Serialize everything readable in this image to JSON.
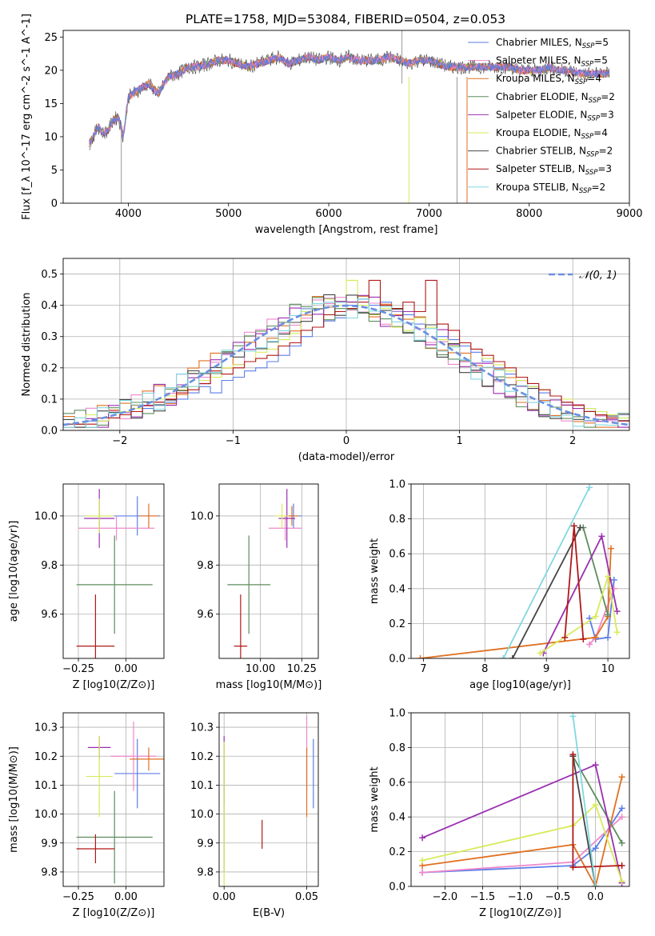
{
  "figure": {
    "title": "PLATE=1758, MJD=53084, FIBERID=0504, z=0.053"
  },
  "models": [
    {
      "name": "Chabrier MILES",
      "nssp": "5",
      "color": "#5b7ee8"
    },
    {
      "name": "Salpeter MILES",
      "nssp": "5",
      "color": "#ee88cc"
    },
    {
      "name": "Kroupa MILES",
      "nssp": "4",
      "color": "#e07020"
    },
    {
      "name": "Chabrier ELODIE",
      "nssp": "2",
      "color": "#5e8c5e"
    },
    {
      "name": "Salpeter ELODIE",
      "nssp": "3",
      "color": "#9a2fb0"
    },
    {
      "name": "Kroupa ELODIE",
      "nssp": "4",
      "color": "#d8ea5a"
    },
    {
      "name": "Chabrier STELIB",
      "nssp": "2",
      "color": "#444444"
    },
    {
      "name": "Salpeter STELIB",
      "nssp": "3",
      "color": "#b01818"
    },
    {
      "name": "Kroupa STELIB",
      "nssp": "2",
      "color": "#80d8e0"
    }
  ],
  "chart_data": [
    {
      "id": "spectrum",
      "type": "line",
      "title": "PLATE=1758, MJD=53084, FIBERID=0504, z=0.053",
      "xlabel": "wavelength [Angstrom, rest frame]",
      "ylabel": "Flux [f_λ 10^-17 erg cm^-2 s^-1 A^-1]",
      "xlim": [
        3350,
        9000
      ],
      "ylim": [
        0,
        26
      ],
      "xticks": [
        4000,
        5000,
        6000,
        7000,
        8000,
        9000
      ],
      "yticks": [
        0,
        5,
        10,
        15,
        20,
        25
      ],
      "grid": false,
      "legend": "right",
      "x": [
        3610,
        3650,
        3700,
        3750,
        3800,
        3850,
        3900,
        3950,
        4000,
        4100,
        4200,
        4300,
        4400,
        4500,
        4600,
        4700,
        4800,
        4900,
        5000,
        5100,
        5200,
        5300,
        5400,
        5500,
        5600,
        5700,
        5800,
        5900,
        6000,
        6100,
        6200,
        6300,
        6400,
        6500,
        6600,
        6700,
        6800,
        6900,
        7000,
        7100,
        7200,
        7300,
        7400,
        7500,
        7600,
        7700,
        7800,
        7900,
        8000,
        8100,
        8200,
        8300,
        8400,
        8500,
        8600,
        8700,
        8800
      ],
      "series": [
        {
          "name": "Chabrier MILES",
          "values": [
            9,
            10,
            11.5,
            10.5,
            11,
            12.5,
            13,
            10,
            16,
            17,
            18,
            16.5,
            19,
            19.5,
            20.5,
            20.5,
            21,
            21.5,
            21.5,
            21,
            20.5,
            21,
            21.5,
            22,
            21,
            21.5,
            22,
            21.5,
            22,
            21.5,
            22,
            21.5,
            21.5,
            21.5,
            22,
            21.5,
            21,
            21.5,
            21.5,
            21,
            20.5,
            20.5,
            20.5,
            20.5,
            20.5,
            20.5,
            20.5,
            20,
            20,
            20,
            20.5,
            20,
            20,
            19.5,
            19.5,
            19.5,
            19.5
          ]
        }
      ]
    },
    {
      "id": "residual-histogram",
      "type": "line",
      "xlabel": "(data-model)/error",
      "ylabel": "Normed distribution",
      "xlim": [
        -2.5,
        2.5
      ],
      "ylim": [
        0,
        0.55
      ],
      "xticks": [
        -2,
        -1,
        0,
        1,
        2
      ],
      "yticks": [
        0.0,
        0.1,
        0.2,
        0.3,
        0.4,
        0.5
      ],
      "grid": true,
      "legend": "top-right",
      "legend_label": "𝒩(0, 1)",
      "curve": "normal pdf, mean 0, sd 1",
      "bin_edges_start": -2.5,
      "bin_width": 0.1,
      "series": [
        {
          "name": "Chabrier MILES",
          "values": [
            0.02,
            0.02,
            0.03,
            0.03,
            0.04,
            0.05,
            0.06,
            0.07,
            0.08,
            0.09,
            0.1,
            0.12,
            0.14,
            0.12,
            0.16,
            0.17,
            0.19,
            0.2,
            0.22,
            0.24,
            0.27,
            0.3,
            0.33,
            0.35,
            0.36,
            0.4,
            0.42,
            0.4,
            0.41,
            0.38,
            0.37,
            0.34,
            0.33,
            0.3,
            0.29,
            0.27,
            0.25,
            0.22,
            0.2,
            0.18,
            0.16,
            0.14,
            0.12,
            0.11,
            0.09,
            0.08,
            0.07,
            0.06,
            0.05,
            0.05
          ]
        },
        {
          "name": "Salpeter STELIB",
          "values": [
            0.02,
            0.02,
            0.02,
            0.04,
            0.04,
            0.05,
            0.06,
            0.08,
            0.09,
            0.1,
            0.12,
            0.13,
            0.15,
            0.19,
            0.18,
            0.2,
            0.22,
            0.23,
            0.24,
            0.27,
            0.28,
            0.32,
            0.33,
            0.37,
            0.38,
            0.39,
            0.41,
            0.48,
            0.4,
            0.39,
            0.41,
            0.38,
            0.48,
            0.34,
            0.32,
            0.28,
            0.26,
            0.24,
            0.22,
            0.2,
            0.17,
            0.15,
            0.13,
            0.11,
            0.09,
            0.08,
            0.06,
            0.05,
            0.04,
            0.03
          ]
        },
        {
          "name": "Kroupa ELODIE",
          "values": [
            0.02,
            0.02,
            0.05,
            0.03,
            0.04,
            0.06,
            0.07,
            0.09,
            0.1,
            0.11,
            0.13,
            0.14,
            0.16,
            0.17,
            0.2,
            0.21,
            0.22,
            0.25,
            0.26,
            0.29,
            0.31,
            0.38,
            0.39,
            0.42,
            0.4,
            0.48,
            0.4,
            0.37,
            0.39,
            0.33,
            0.32,
            0.36,
            0.33,
            0.29,
            0.27,
            0.28,
            0.26,
            0.23,
            0.21,
            0.19,
            0.16,
            0.14,
            0.13,
            0.11,
            0.1,
            0.08,
            0.07,
            0.06,
            0.05,
            0.04
          ]
        }
      ]
    },
    {
      "id": "age-vs-Z",
      "type": "scatter",
      "xlabel": "Z [log10(Z/Z⊙)]",
      "ylabel": "age [log10(age/yr)]",
      "xlim": [
        -0.33,
        0.2
      ],
      "ylim": [
        9.42,
        10.13
      ],
      "xticks": [
        -0.25,
        0.0
      ],
      "yticks": [
        9.6,
        9.8,
        10.0
      ],
      "grid": true,
      "points": [
        {
          "model": "Chabrier MILES",
          "x": 0.06,
          "y": 10.0,
          "xerr": 0.12,
          "yerr": 0.08
        },
        {
          "model": "Salpeter MILES",
          "x": -0.05,
          "y": 9.95,
          "xerr": 0.2,
          "yerr": 0.05
        },
        {
          "model": "Kroupa MILES",
          "x": 0.12,
          "y": 10.0,
          "xerr": 0.05,
          "yerr": 0.05
        },
        {
          "model": "Chabrier ELODIE",
          "x": -0.06,
          "y": 9.72,
          "xerr": 0.2,
          "yerr": 0.2
        },
        {
          "model": "Salpeter ELODIE",
          "x": -0.14,
          "y": 9.99,
          "xerr": 0.08,
          "yerr": 0.12
        },
        {
          "model": "Kroupa ELODIE",
          "x": -0.14,
          "y": 10.0,
          "xerr": 0.07,
          "yerr": 0.07
        },
        {
          "model": "Salpeter STELIB",
          "x": -0.16,
          "y": 9.47,
          "xerr": 0.1,
          "yerr": 0.21
        }
      ]
    },
    {
      "id": "age-vs-mass",
      "type": "scatter",
      "xlabel": "mass [log10(M/M⊙)]",
      "ylabel": "",
      "xlim": [
        9.75,
        10.35
      ],
      "ylim": [
        9.42,
        10.13
      ],
      "xticks": [
        10.0,
        10.25
      ],
      "yticks": [
        9.6,
        9.8,
        10.0
      ],
      "grid": true,
      "points": [
        {
          "model": "Chabrier MILES",
          "x": 10.2,
          "y": 10.0,
          "xerr": 0.05,
          "yerr": 0.05
        },
        {
          "model": "Salpeter MILES",
          "x": 10.15,
          "y": 9.95,
          "xerr": 0.1,
          "yerr": 0.05
        },
        {
          "model": "Kroupa MILES",
          "x": 10.19,
          "y": 10.0,
          "xerr": 0.04,
          "yerr": 0.04
        },
        {
          "model": "Chabrier ELODIE",
          "x": 9.93,
          "y": 9.72,
          "xerr": 0.13,
          "yerr": 0.2
        },
        {
          "model": "Salpeter ELODIE",
          "x": 10.16,
          "y": 9.99,
          "xerr": 0.05,
          "yerr": 0.12
        },
        {
          "model": "Kroupa ELODIE",
          "x": 10.13,
          "y": 10.0,
          "xerr": 0.04,
          "yerr": 0.05
        },
        {
          "model": "Salpeter STELIB",
          "x": 9.88,
          "y": 9.47,
          "xerr": 0.04,
          "yerr": 0.21
        }
      ]
    },
    {
      "id": "weight-vs-age",
      "type": "line",
      "xlabel": "age [log10(age/yr)]",
      "ylabel": "mass weight",
      "xlim": [
        6.8,
        10.35
      ],
      "ylim": [
        0,
        1.0
      ],
      "xticks": [
        7,
        8,
        9,
        10
      ],
      "yticks": [
        0.0,
        0.2,
        0.4,
        0.6,
        0.8,
        1.0
      ],
      "grid": true,
      "series": [
        {
          "name": "Chabrier MILES",
          "x": [
            9.7,
            9.8,
            10.0,
            10.1
          ],
          "values": [
            0.23,
            0.11,
            0.12,
            0.45
          ]
        },
        {
          "name": "Salpeter MILES",
          "x": [
            9.7,
            9.8,
            10.1
          ],
          "values": [
            0.08,
            0.12,
            0.4
          ]
        },
        {
          "name": "Kroupa MILES",
          "x": [
            6.95,
            9.8,
            10.0,
            10.05
          ],
          "values": [
            0.0,
            0.12,
            0.24,
            0.63
          ]
        },
        {
          "name": "Chabrier ELODIE",
          "x": [
            9.6,
            10.0
          ],
          "values": [
            0.75,
            0.25
          ]
        },
        {
          "name": "Salpeter ELODIE",
          "x": [
            8.95,
            9.9,
            10.15
          ],
          "values": [
            0.03,
            0.7,
            0.27
          ]
        },
        {
          "name": "Kroupa ELODIE",
          "x": [
            8.9,
            9.8,
            10.0,
            10.15
          ],
          "values": [
            0.03,
            0.24,
            0.47,
            0.15
          ]
        },
        {
          "name": "Chabrier STELIB",
          "x": [
            8.45,
            9.55
          ],
          "values": [
            0.0,
            0.75
          ]
        },
        {
          "name": "Salpeter STELIB",
          "x": [
            9.3,
            9.45,
            9.6
          ],
          "values": [
            0.12,
            0.76,
            0.11
          ]
        },
        {
          "name": "Kroupa STELIB",
          "x": [
            8.3,
            9.7
          ],
          "values": [
            0.0,
            0.98
          ]
        }
      ]
    },
    {
      "id": "mass-vs-Z",
      "type": "scatter",
      "xlabel": "Z [log10(Z/Z⊙)]",
      "ylabel": "mass [log10(M/M⊙)]",
      "xlim": [
        -0.33,
        0.2
      ],
      "ylim": [
        9.75,
        10.35
      ],
      "xticks": [
        -0.25,
        0.0
      ],
      "yticks": [
        9.8,
        9.9,
        10.0,
        10.1,
        10.2,
        10.3
      ],
      "grid": true,
      "points": [
        {
          "model": "Chabrier MILES",
          "x": 0.06,
          "y": 10.14,
          "xerr": 0.12,
          "yerr": 0.12
        },
        {
          "model": "Salpeter MILES",
          "x": 0.04,
          "y": 10.2,
          "xerr": 0.12,
          "yerr": 0.12
        },
        {
          "model": "Kroupa MILES",
          "x": 0.12,
          "y": 10.19,
          "xerr": 0.1,
          "yerr": 0.04
        },
        {
          "model": "Chabrier ELODIE",
          "x": -0.06,
          "y": 9.92,
          "xerr": 0.2,
          "yerr": 0.16
        },
        {
          "model": "Salpeter ELODIE",
          "x": -0.14,
          "y": 10.23,
          "xerr": 0.06,
          "yerr": 0.04
        },
        {
          "model": "Kroupa ELODIE",
          "x": -0.14,
          "y": 10.13,
          "xerr": 0.07,
          "yerr": 0.14
        },
        {
          "model": "Salpeter STELIB",
          "x": -0.16,
          "y": 9.88,
          "xerr": 0.1,
          "yerr": 0.05
        }
      ]
    },
    {
      "id": "mass-vs-EBV",
      "type": "scatter",
      "xlabel": "E(B-V)",
      "ylabel": "",
      "xlim": [
        -0.003,
        0.057
      ],
      "ylim": [
        9.75,
        10.35
      ],
      "xticks": [
        0.0,
        0.05
      ],
      "xtick_labels": [
        "0.00",
        "0.05"
      ],
      "yticks": [
        9.8,
        9.9,
        10.0,
        10.1,
        10.2,
        10.3
      ],
      "grid": true,
      "points": [
        {
          "model": "Chabrier MILES",
          "x": 0.054,
          "y": 10.14,
          "yerr": 0.12
        },
        {
          "model": "Salpeter MILES",
          "x": 0.05,
          "y": 10.21,
          "yerr": 0.13
        },
        {
          "model": "Kroupa MILES",
          "x": 0.05,
          "y": 10.11,
          "yerr": 0.12
        },
        {
          "model": "Chabrier ELODIE",
          "x": 0.0,
          "y": 10.0,
          "yerr": 0.2
        },
        {
          "model": "Salpeter ELODIE",
          "x": 0.0,
          "y": 10.15,
          "yerr": 0.12
        },
        {
          "model": "Kroupa ELODIE",
          "x": 0.0,
          "y": 10.0,
          "yerr": 0.25
        },
        {
          "model": "Salpeter STELIB",
          "x": 0.023,
          "y": 9.93,
          "yerr": 0.05
        }
      ]
    },
    {
      "id": "weight-vs-Z",
      "type": "line",
      "xlabel": "Z [log10(Z/Z⊙)]",
      "ylabel": "mass weight",
      "xlim": [
        -2.45,
        0.45
      ],
      "ylim": [
        0,
        1.0
      ],
      "xticks": [
        -2.0,
        -1.5,
        -1.0,
        -0.5,
        0.0
      ],
      "grid": true,
      "yticks": [
        0.0,
        0.2,
        0.4,
        0.6,
        0.8,
        1.0
      ],
      "series": [
        {
          "name": "Chabrier MILES",
          "x": [
            -2.3,
            -0.3,
            0.0,
            0.35
          ],
          "values": [
            0.08,
            0.12,
            0.22,
            0.45
          ]
        },
        {
          "name": "Salpeter MILES",
          "x": [
            -2.3,
            -0.3,
            0.35
          ],
          "values": [
            0.08,
            0.14,
            0.4
          ]
        },
        {
          "name": "Kroupa MILES",
          "x": [
            -2.3,
            -0.3,
            0.0,
            0.35
          ],
          "values": [
            0.12,
            0.24,
            0.0,
            0.63
          ]
        },
        {
          "name": "Chabrier ELODIE",
          "x": [
            -0.3,
            0.35
          ],
          "values": [
            0.75,
            0.25
          ]
        },
        {
          "name": "Salpeter ELODIE",
          "x": [
            -2.3,
            0.0,
            0.35
          ],
          "values": [
            0.28,
            0.7,
            0.02
          ]
        },
        {
          "name": "Kroupa ELODIE",
          "x": [
            -2.3,
            -0.3,
            0.0,
            0.35
          ],
          "values": [
            0.15,
            0.35,
            0.47,
            0.03
          ]
        },
        {
          "name": "Chabrier STELIB",
          "x": [
            -0.3,
            0.0
          ],
          "values": [
            0.75,
            0.0
          ]
        },
        {
          "name": "Salpeter STELIB",
          "x": [
            -0.3,
            -0.3,
            0.35
          ],
          "values": [
            0.76,
            0.11,
            0.12
          ]
        },
        {
          "name": "Kroupa STELIB",
          "x": [
            -0.3,
            0.0
          ],
          "values": [
            0.98,
            0.0
          ]
        }
      ]
    }
  ]
}
